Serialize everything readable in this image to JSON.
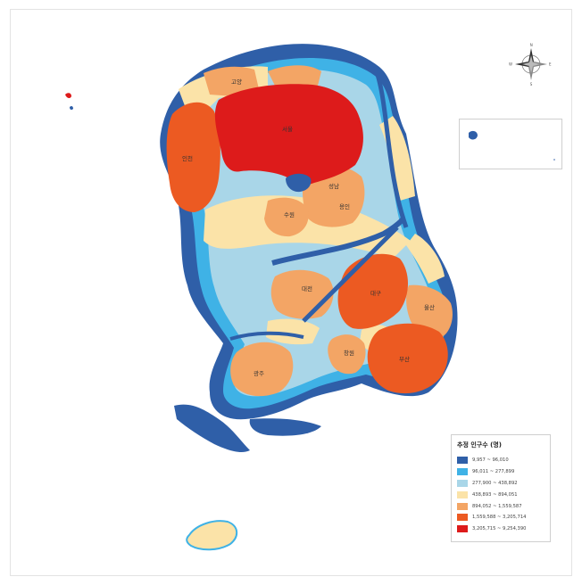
{
  "map": {
    "cities": {
      "goyang": "고양",
      "seoul": "서울",
      "incheon": "인천",
      "seongnam": "성남",
      "yongin": "용인",
      "suwon": "수원",
      "daejeon": "대전",
      "daegu": "대구",
      "ulsan": "울산",
      "changwon": "창원",
      "busan": "부산",
      "gwangju": "광주"
    },
    "compass": {
      "n": "N",
      "e": "E",
      "s": "S",
      "w": "W"
    }
  },
  "legend": {
    "title": "추정 인구수 (명)",
    "classes": [
      {
        "label": "9,957 ~ 96,010",
        "color": "#2f5fa8"
      },
      {
        "label": "96,011 ~ 277,899",
        "color": "#3fb2e6"
      },
      {
        "label": "277,900 ~ 438,892",
        "color": "#a9d6e8"
      },
      {
        "label": "438,893 ~ 894,051",
        "color": "#fbe3a8"
      },
      {
        "label": "894,052 ~ 1,559,587",
        "color": "#f3a565"
      },
      {
        "label": "1,559,588 ~ 3,205,714",
        "color": "#ec5a22"
      },
      {
        "label": "3,205,715 ~ 9,254,390",
        "color": "#dd1b1b"
      }
    ]
  }
}
